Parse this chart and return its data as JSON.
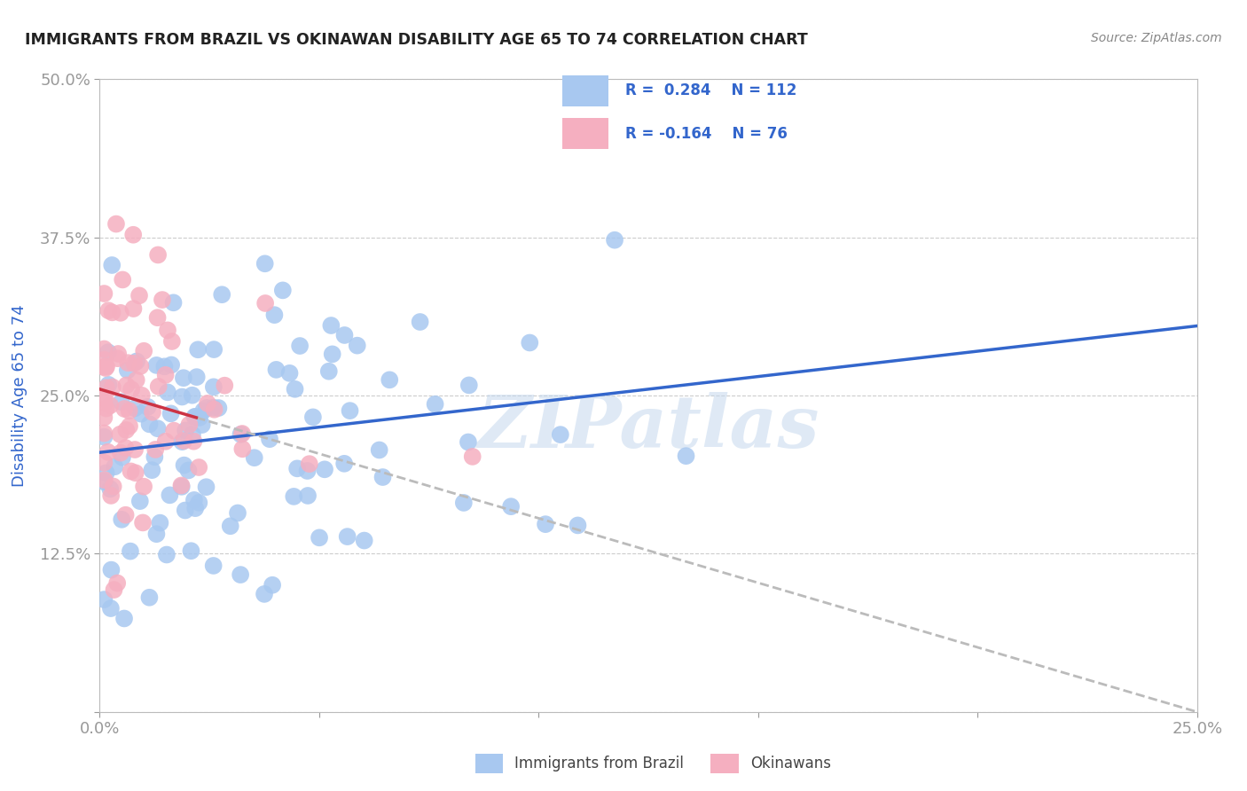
{
  "title": "IMMIGRANTS FROM BRAZIL VS OKINAWAN DISABILITY AGE 65 TO 74 CORRELATION CHART",
  "source": "Source: ZipAtlas.com",
  "xlabel_brazil": "Immigrants from Brazil",
  "xlabel_okinawan": "Okinawans",
  "ylabel": "Disability Age 65 to 74",
  "xlim": [
    0.0,
    0.25
  ],
  "ylim": [
    0.0,
    0.5
  ],
  "brazil_color": "#a8c8f0",
  "okinawan_color": "#f5afc0",
  "brazil_line_color": "#3366cc",
  "okinawan_line_solid_color": "#cc3344",
  "okinawan_line_dash_color": "#bbbbbb",
  "R_brazil": 0.284,
  "N_brazil": 112,
  "R_okinawan": -0.164,
  "N_okinawan": 76,
  "watermark": "ZIPatlas",
  "watermark_color": "#c5d8ee",
  "title_color": "#222222",
  "source_color": "#888888",
  "axis_label_color": "#3366cc",
  "tick_label_color": "#3366cc",
  "grid_color": "#cccccc",
  "background_color": "#ffffff",
  "brazil_trend_y0": 0.205,
  "brazil_trend_y1": 0.305,
  "okinawan_trend_y0": 0.255,
  "okinawan_trend_slope": -1.02
}
